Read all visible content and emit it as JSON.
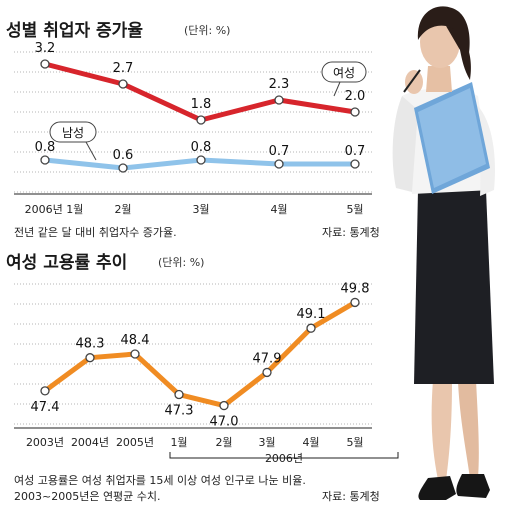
{
  "chart_data": [
    {
      "type": "line",
      "title": "성별 취업자 증가율",
      "unit": "(단위: %)",
      "categories": [
        "2006년 1월",
        "2월",
        "3월",
        "4월",
        "5월"
      ],
      "series": [
        {
          "name": "여성",
          "values": [
            3.2,
            2.7,
            1.8,
            2.3,
            2.0
          ],
          "labels": [
            "3.2",
            "2.7",
            "1.8",
            "2.3",
            "2.0"
          ],
          "color": "#d7252c"
        },
        {
          "name": "남성",
          "values": [
            0.8,
            0.6,
            0.8,
            0.7,
            0.7
          ],
          "labels": [
            "0.8",
            "0.6",
            "0.8",
            "0.7",
            "0.7"
          ],
          "color": "#8fc3ea"
        }
      ],
      "ylim": [
        0,
        3.5
      ],
      "grid": true,
      "note": "전년 같은 달 대비 취업자수 증가율.",
      "source": "자료: 통계청"
    },
    {
      "type": "line",
      "title": "여성 고용률 추이",
      "unit": "(단위: %)",
      "categories": [
        "2003년",
        "2004년",
        "2005년",
        "1월",
        "2월",
        "3월",
        "4월",
        "5월"
      ],
      "group_label": "2006년",
      "series": [
        {
          "name": "",
          "values": [
            47.4,
            48.3,
            48.4,
            47.3,
            47.0,
            47.9,
            49.1,
            49.8
          ],
          "labels": [
            "47.4",
            "48.3",
            "48.4",
            "47.3",
            "47.0",
            "47.9",
            "49.1",
            "49.8"
          ],
          "color": "#f08c23"
        }
      ],
      "ylim": [
        46.5,
        50.3
      ],
      "grid": true,
      "note_lines": [
        "여성 고용률은 여성 취업자를 15세 이상 여성 인구로 나눈 비율.",
        "2003~2005년은 연평균 수치."
      ],
      "source": "자료: 통계청"
    }
  ]
}
